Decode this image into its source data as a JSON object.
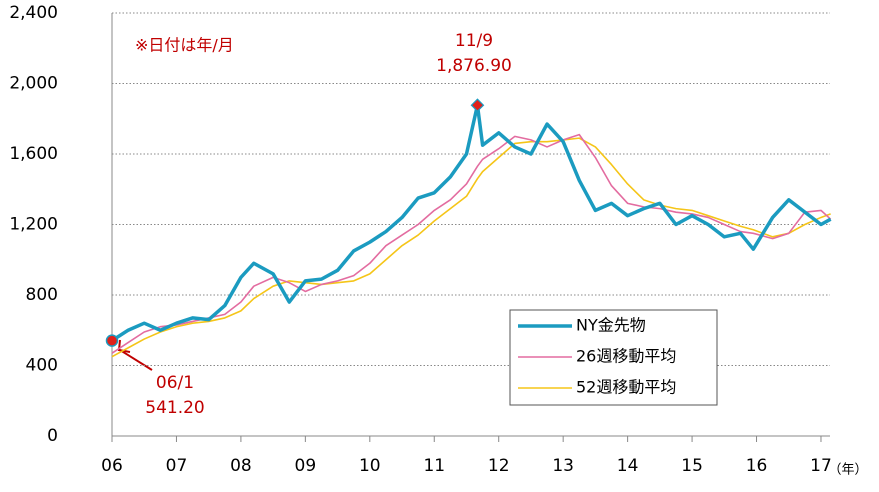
{
  "chart_data": {
    "type": "line",
    "x": [
      2006.0,
      2006.25,
      2006.5,
      2006.75,
      2007.0,
      2007.25,
      2007.5,
      2007.75,
      2008.0,
      2008.2,
      2008.5,
      2008.75,
      2009.0,
      2009.25,
      2009.5,
      2009.75,
      2010.0,
      2010.25,
      2010.5,
      2010.75,
      2011.0,
      2011.25,
      2011.5,
      2011.67,
      2011.75,
      2012.0,
      2012.25,
      2012.5,
      2012.75,
      2013.0,
      2013.25,
      2013.5,
      2013.75,
      2014.0,
      2014.25,
      2014.5,
      2014.75,
      2015.0,
      2015.25,
      2015.5,
      2015.75,
      2015.95,
      2016.25,
      2016.5,
      2016.75,
      2017.0,
      2017.15
    ],
    "series": [
      {
        "name": "NY金先物",
        "color": "#1b9bc0",
        "values": [
          541.2,
          600,
          640,
          600,
          640,
          670,
          660,
          740,
          900,
          980,
          920,
          760,
          880,
          890,
          940,
          1050,
          1100,
          1160,
          1240,
          1350,
          1380,
          1470,
          1600,
          1876.9,
          1650,
          1720,
          1640,
          1600,
          1770,
          1670,
          1450,
          1280,
          1320,
          1250,
          1290,
          1320,
          1200,
          1250,
          1200,
          1130,
          1150,
          1060,
          1240,
          1340,
          1270,
          1200,
          1230
        ]
      },
      {
        "name": "26週移動平均",
        "color": "#e36ca0",
        "values": [
          470,
          530,
          590,
          620,
          630,
          650,
          670,
          690,
          760,
          850,
          900,
          870,
          820,
          860,
          880,
          910,
          980,
          1080,
          1140,
          1200,
          1280,
          1340,
          1430,
          1530,
          1570,
          1630,
          1700,
          1680,
          1640,
          1680,
          1710,
          1580,
          1420,
          1320,
          1300,
          1290,
          1270,
          1260,
          1240,
          1200,
          1160,
          1150,
          1120,
          1150,
          1270,
          1280,
          1230
        ]
      },
      {
        "name": "52週移動平均",
        "color": "#f5c518",
        "values": [
          450,
          500,
          550,
          590,
          620,
          640,
          650,
          670,
          710,
          780,
          850,
          880,
          870,
          860,
          870,
          880,
          920,
          1000,
          1080,
          1140,
          1220,
          1290,
          1360,
          1460,
          1500,
          1580,
          1660,
          1670,
          1670,
          1680,
          1690,
          1640,
          1540,
          1430,
          1340,
          1310,
          1290,
          1280,
          1250,
          1220,
          1190,
          1170,
          1130,
          1150,
          1200,
          1240,
          1260
        ]
      }
    ],
    "xlim": [
      2006,
      2017.14
    ],
    "xticks": [
      {
        "value": 2006,
        "label": "06"
      },
      {
        "value": 2007,
        "label": "07"
      },
      {
        "value": 2008,
        "label": "08"
      },
      {
        "value": 2009,
        "label": "09"
      },
      {
        "value": 2010,
        "label": "10"
      },
      {
        "value": 2011,
        "label": "11"
      },
      {
        "value": 2012,
        "label": "12"
      },
      {
        "value": 2013,
        "label": "13"
      },
      {
        "value": 2014,
        "label": "14"
      },
      {
        "value": 2015,
        "label": "15"
      },
      {
        "value": 2016,
        "label": "16"
      },
      {
        "value": 2017,
        "label": "17"
      }
    ],
    "ylim": [
      0,
      2400
    ],
    "yticks": [
      0,
      400,
      800,
      {
        "value": 1200,
        "label": "1,200"
      },
      {
        "value": 1600,
        "label": "1,600"
      },
      {
        "value": 2000,
        "label": "2,000"
      },
      {
        "value": 2400,
        "label": "2,400"
      }
    ],
    "grid": true,
    "x_unit": "（年）",
    "note": "※日付は年/月",
    "annotations": [
      {
        "date": "11/9",
        "value_text": "1,876.90"
      },
      {
        "date": "06/1",
        "value_text": "541.20"
      }
    ]
  }
}
